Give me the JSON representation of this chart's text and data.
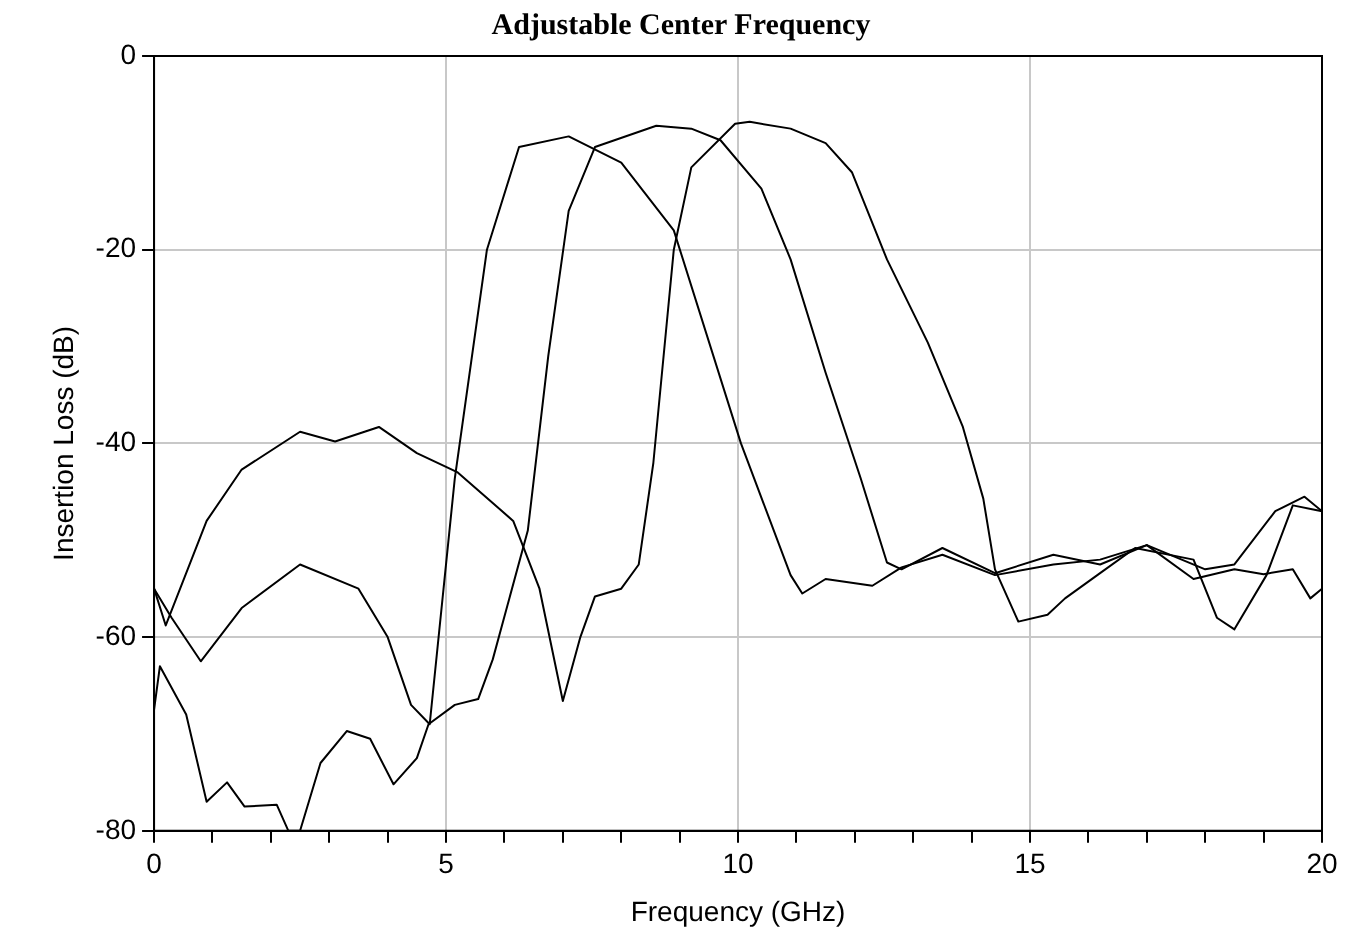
{
  "chart_data": {
    "type": "line",
    "title": "Adjustable Center Frequency",
    "xlabel": "Frequency (GHz)",
    "ylabel": "Insertion Loss (dB)",
    "xlim": [
      0,
      20
    ],
    "ylim": [
      -80,
      0
    ],
    "xticks": [
      0,
      {
        "value": 1,
        "label": null
      },
      {
        "value": 2,
        "label": null
      },
      {
        "value": 3,
        "label": null
      },
      {
        "value": 4,
        "label": null
      },
      5,
      {
        "value": 6,
        "label": null
      },
      {
        "value": 7,
        "label": null
      },
      {
        "value": 8,
        "label": null
      },
      {
        "value": 9,
        "label": null
      },
      10,
      {
        "value": 11,
        "label": null
      },
      {
        "value": 12,
        "label": null
      },
      {
        "value": 13,
        "label": null
      },
      {
        "value": 14,
        "label": null
      },
      15,
      {
        "value": 16,
        "label": null
      },
      {
        "value": 17,
        "label": null
      },
      {
        "value": 18,
        "label": null
      },
      {
        "value": 19,
        "label": null
      },
      20
    ],
    "yticks": [
      -80,
      -60,
      -40,
      -20,
      0
    ],
    "grid": true,
    "legend": false,
    "marker": "none",
    "line_style": "solid",
    "series": [
      {
        "color": "#000000",
        "x": [
          0,
          0.3,
          0.8,
          1.5,
          2.5,
          3.5,
          4.0,
          4.4,
          4.72,
          5.15,
          5.7,
          6.25,
          7.1,
          8.0,
          8.9,
          10.05,
          10.9,
          11.1,
          11.5,
          12.3,
          12.8,
          13.5,
          14.4,
          15.4,
          16.2,
          17.0,
          17.8,
          18.5,
          19.0,
          19.5,
          19.8,
          20
        ],
        "values": [
          -55,
          -58,
          -62.5,
          -57,
          -52.5,
          -55,
          -60,
          -67,
          -69,
          -43.6,
          -20,
          -9.4,
          -8.3,
          -11,
          -18,
          -40,
          -53.6,
          -55.5,
          -54,
          -54.7,
          -52.8,
          -51.5,
          -53.6,
          -52.5,
          -52,
          -50.5,
          -54,
          -53,
          -53.5,
          -53,
          -56,
          -55
        ]
      },
      {
        "color": "#000000",
        "x": [
          0,
          0.2,
          0.9,
          1.5,
          2.5,
          3.1,
          3.85,
          4.5,
          5.2,
          6.15,
          6.6,
          7.0,
          7.3,
          7.55,
          8.0,
          8.3,
          8.55,
          8.9,
          9.2,
          9.95,
          10.2,
          10.9,
          11.5,
          11.95,
          12.55,
          13.25,
          13.85,
          14.2,
          14.4,
          14.8,
          15.3,
          15.6,
          16.2,
          16.8,
          17.8,
          18.2,
          18.5,
          19.05,
          19.5,
          20
        ],
        "values": [
          -55,
          -58.8,
          -48,
          -42.7,
          -38.8,
          -39.8,
          -38.3,
          -41,
          -43,
          -48,
          -55,
          -66.6,
          -60,
          -55.8,
          -55,
          -52.5,
          -42,
          -20,
          -11.5,
          -7,
          -6.8,
          -7.5,
          -9,
          -12,
          -21,
          -29.6,
          -38.3,
          -45.7,
          -53,
          -58.4,
          -57.7,
          -56,
          -53.4,
          -50.8,
          -52,
          -58,
          -59.2,
          -53.6,
          -46.4,
          -47
        ]
      },
      {
        "color": "#000000",
        "x": [
          0,
          0.1,
          0.55,
          0.9,
          1.25,
          1.55,
          2.1,
          2.3,
          2.5,
          2.85,
          3.3,
          3.7,
          4.1,
          4.5,
          4.7,
          5.15,
          5.55,
          5.8,
          6.4,
          6.75,
          7.1,
          7.55,
          8.6,
          9.2,
          9.7,
          10.4,
          10.9,
          11.5,
          12.1,
          12.55,
          12.8,
          13.5,
          14.4,
          15.4,
          16.2,
          17.0,
          18.0,
          18.5,
          19.2,
          19.7,
          20
        ],
        "values": [
          -67.5,
          -63,
          -68,
          -77,
          -75,
          -77.5,
          -77.3,
          -80,
          -80,
          -73,
          -69.7,
          -70.5,
          -75.2,
          -72.5,
          -69,
          -67,
          -66.4,
          -62.3,
          -49,
          -31,
          -16,
          -9.4,
          -7.2,
          -7.5,
          -8.7,
          -13.7,
          -21,
          -32.7,
          -43.6,
          -52.3,
          -53,
          -50.8,
          -53.4,
          -51.5,
          -52.5,
          -50.5,
          -53,
          -52.5,
          -47,
          -45.5,
          -47
        ]
      }
    ]
  }
}
